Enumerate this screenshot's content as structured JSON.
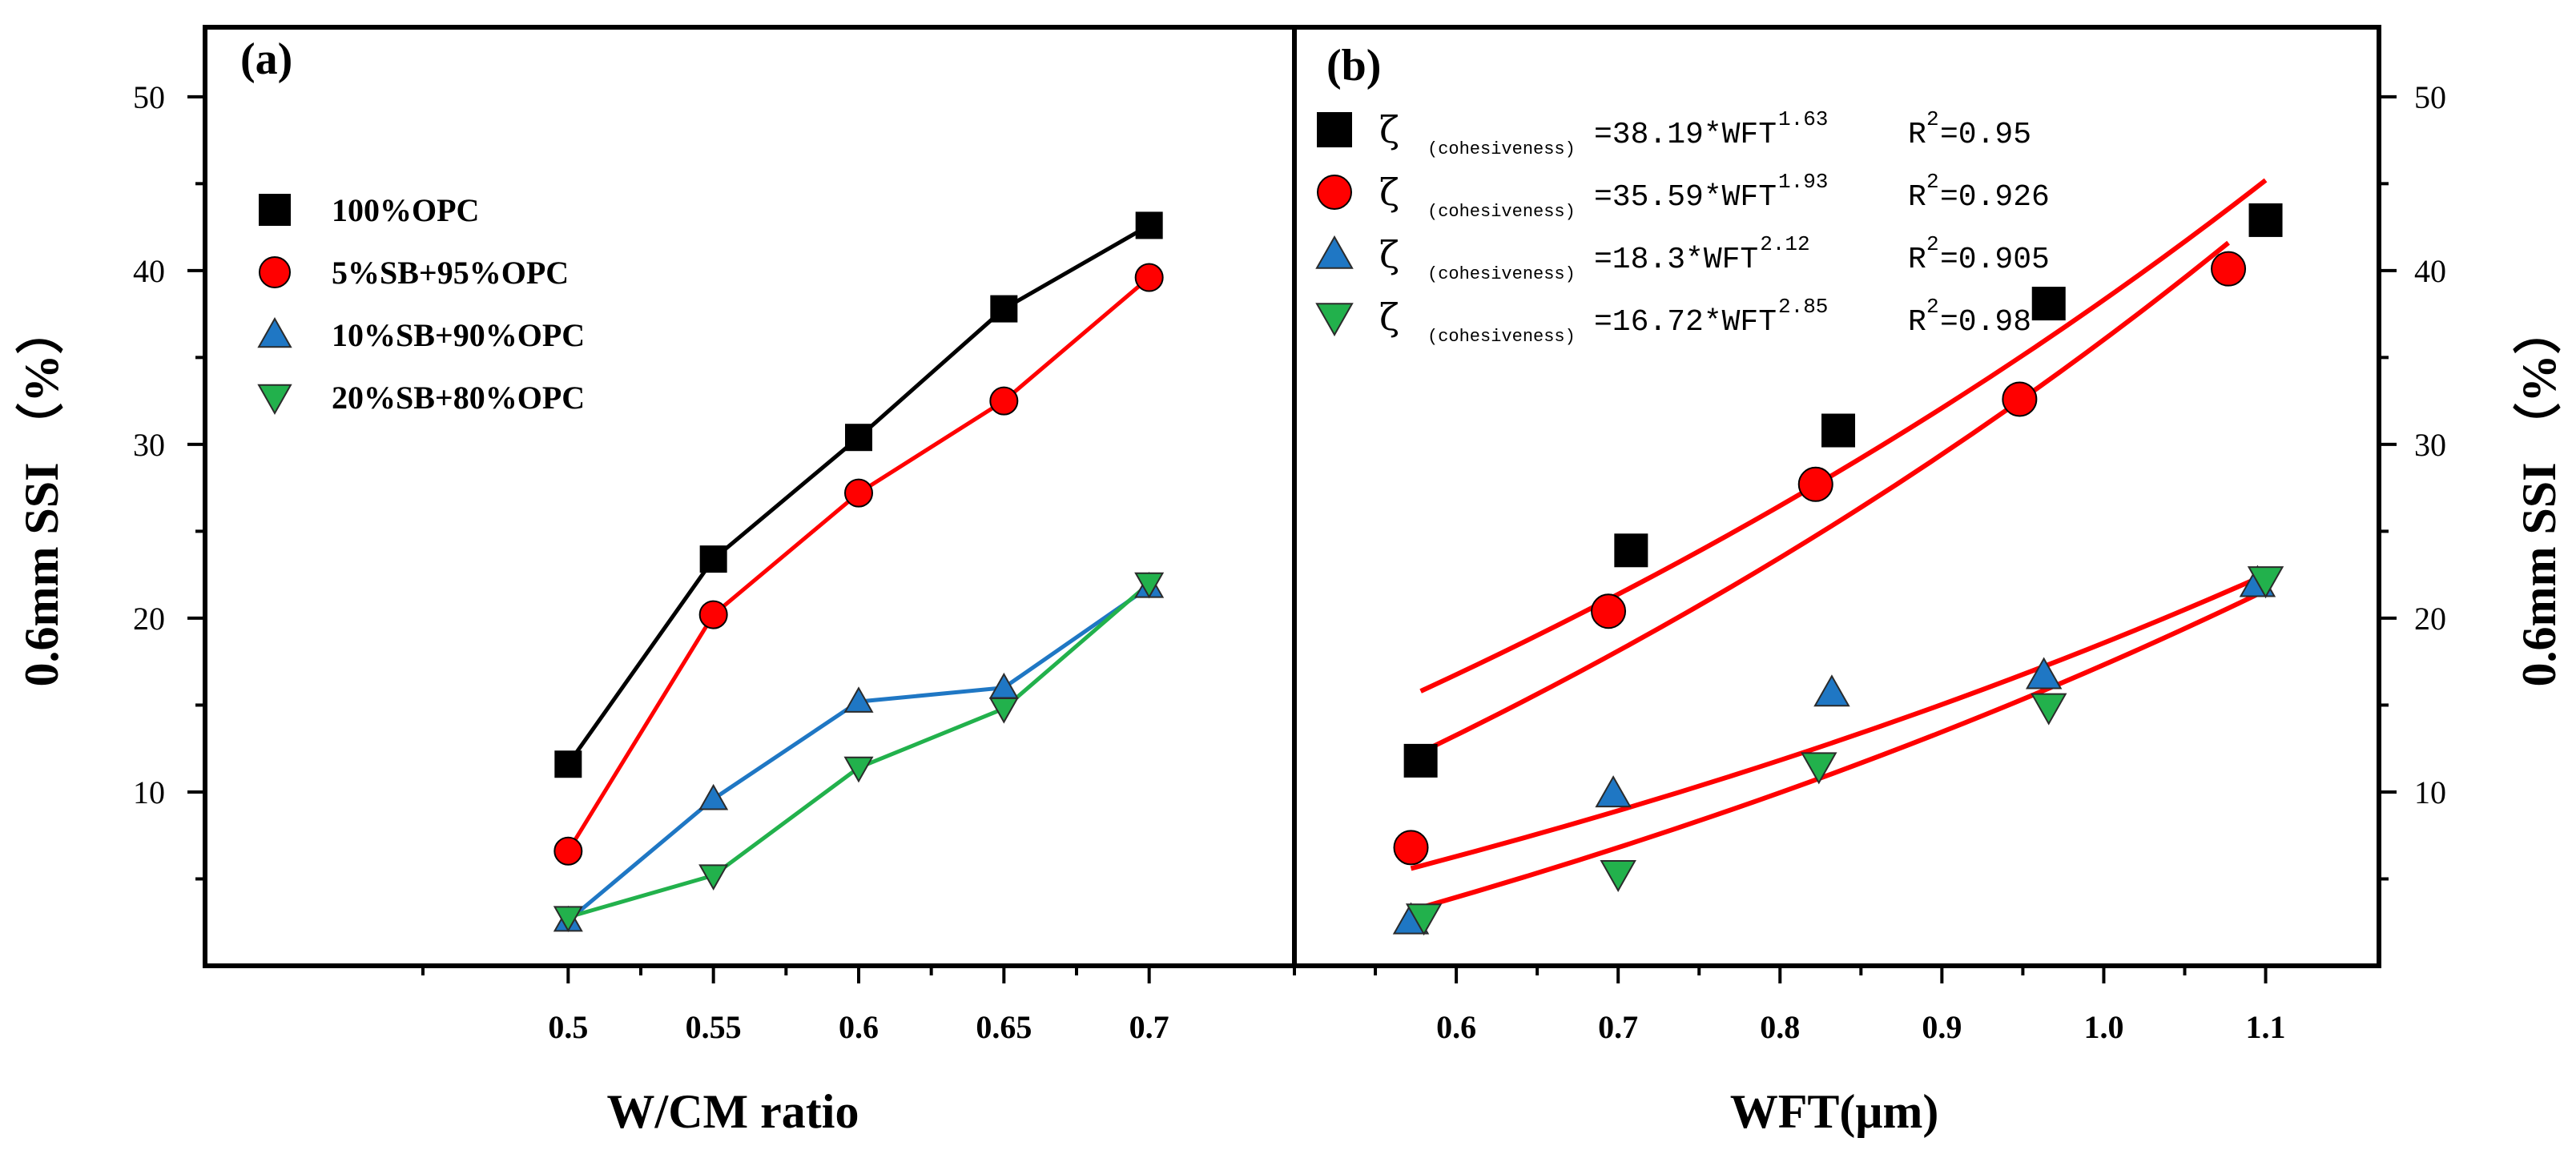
{
  "chart_data": [
    {
      "type": "line",
      "panel_label": "(a)",
      "xlabel": "W/CM ratio",
      "ylabel": "0.6mm SSI （%）",
      "x": [
        0.5,
        0.55,
        0.6,
        0.65,
        0.7
      ],
      "x_tick_labels": [
        "0.5",
        "0.55",
        "0.6",
        "0.65",
        "0.7"
      ],
      "xlim": [
        0.375,
        0.75
      ],
      "ylim": [
        0,
        54
      ],
      "y_ticks": [
        10,
        20,
        30,
        40,
        50
      ],
      "y_tick_labels": [
        "10",
        "20",
        "30",
        "40",
        "50"
      ],
      "legend_position": "upper-left",
      "series": [
        {
          "name": "100%OPC",
          "marker": "square",
          "color": "#000000",
          "values": [
            11.6,
            23.4,
            30.4,
            37.8,
            42.6
          ]
        },
        {
          "name": "5%SB+95%OPC",
          "marker": "circle",
          "color": "#ff0000",
          "values": [
            6.6,
            20.2,
            27.2,
            32.5,
            39.6
          ]
        },
        {
          "name": "10%SB+90%OPC",
          "marker": "triangle-up",
          "color": "#1f77c4",
          "values": [
            2.6,
            9.6,
            15.2,
            16.0,
            21.8
          ]
        },
        {
          "name": "20%SB+80%OPC",
          "marker": "triangle-down",
          "color": "#22b14c",
          "values": [
            2.8,
            5.2,
            11.4,
            14.8,
            22.0
          ]
        }
      ]
    },
    {
      "type": "scatter",
      "panel_label": "(b)",
      "xlabel": "WFT(μm)",
      "ylabel": "0.6mm SSI （%）",
      "xlim": [
        0.5,
        1.17
      ],
      "x_ticks": [
        0.6,
        0.7,
        0.8,
        0.9,
        1.0,
        1.1
      ],
      "x_tick_labels": [
        "0.6",
        "0.7",
        "0.8",
        "0.9",
        "1.0",
        "1.1"
      ],
      "ylim": [
        0,
        54
      ],
      "y_ticks": [
        10,
        20,
        30,
        40,
        50
      ],
      "y_tick_labels": [
        "10",
        "20",
        "30",
        "40",
        "50"
      ],
      "legend_position": "upper-left",
      "fit_color": "#ff0000",
      "series": [
        {
          "marker": "square",
          "color": "#000000",
          "x": [
            0.578,
            0.708,
            0.836,
            0.966,
            1.1
          ],
          "values": [
            11.8,
            23.9,
            30.8,
            38.1,
            42.9
          ],
          "legend": {
            "zeta": "ζ",
            "sub": "(cohesiveness)",
            "eq": "=38.19*WFT",
            "exp": "1.63",
            "r2_label": "R",
            "r2_exp": "2",
            "r2_value": "=0.95"
          },
          "fit": {
            "x": [
              0.578,
              1.1
            ],
            "values": [
              15.8,
              45.2
            ]
          }
        },
        {
          "marker": "circle",
          "color": "#ff0000",
          "x": [
            0.572,
            0.694,
            0.822,
            0.948,
            1.077
          ],
          "values": [
            6.8,
            20.4,
            27.7,
            32.6,
            40.1
          ],
          "legend": {
            "zeta": "ζ",
            "sub": "(cohesiveness)",
            "eq": "=35.59*WFT",
            "exp": "1.93",
            "r2_label": "R",
            "r2_exp": "2",
            "r2_value": "=0.926"
          },
          "fit": {
            "x": [
              0.572,
              1.077
            ],
            "values": [
              12.0,
              41.6
            ]
          }
        },
        {
          "marker": "triangle-up",
          "color": "#1f77c4",
          "x": [
            0.572,
            0.697,
            0.832,
            0.963,
            1.095
          ],
          "values": [
            2.6,
            9.9,
            15.7,
            16.7,
            22.0
          ],
          "legend": {
            "zeta": "ζ",
            "sub": "(cohesiveness)",
            "eq": "=18.3*WFT",
            "exp": "2.12",
            "r2_label": "R",
            "r2_exp": "2",
            "r2_value": "=0.905"
          },
          "fit": {
            "x": [
              0.572,
              1.095
            ],
            "values": [
              5.6,
              22.3
            ]
          }
        },
        {
          "marker": "triangle-down",
          "color": "#22b14c",
          "x": [
            0.58,
            0.7,
            0.824,
            0.966,
            1.1
          ],
          "values": [
            2.8,
            5.3,
            11.5,
            14.9,
            22.2
          ],
          "legend": {
            "zeta": "ζ",
            "sub": "(cohesiveness)",
            "eq": "=16.72*WFT",
            "exp": "2.85",
            "r2_label": "R",
            "r2_exp": "2",
            "r2_value": "=0.98"
          },
          "fit": {
            "x": [
              0.58,
              1.1
            ],
            "values": [
              3.4,
              21.6
            ]
          }
        }
      ]
    }
  ]
}
